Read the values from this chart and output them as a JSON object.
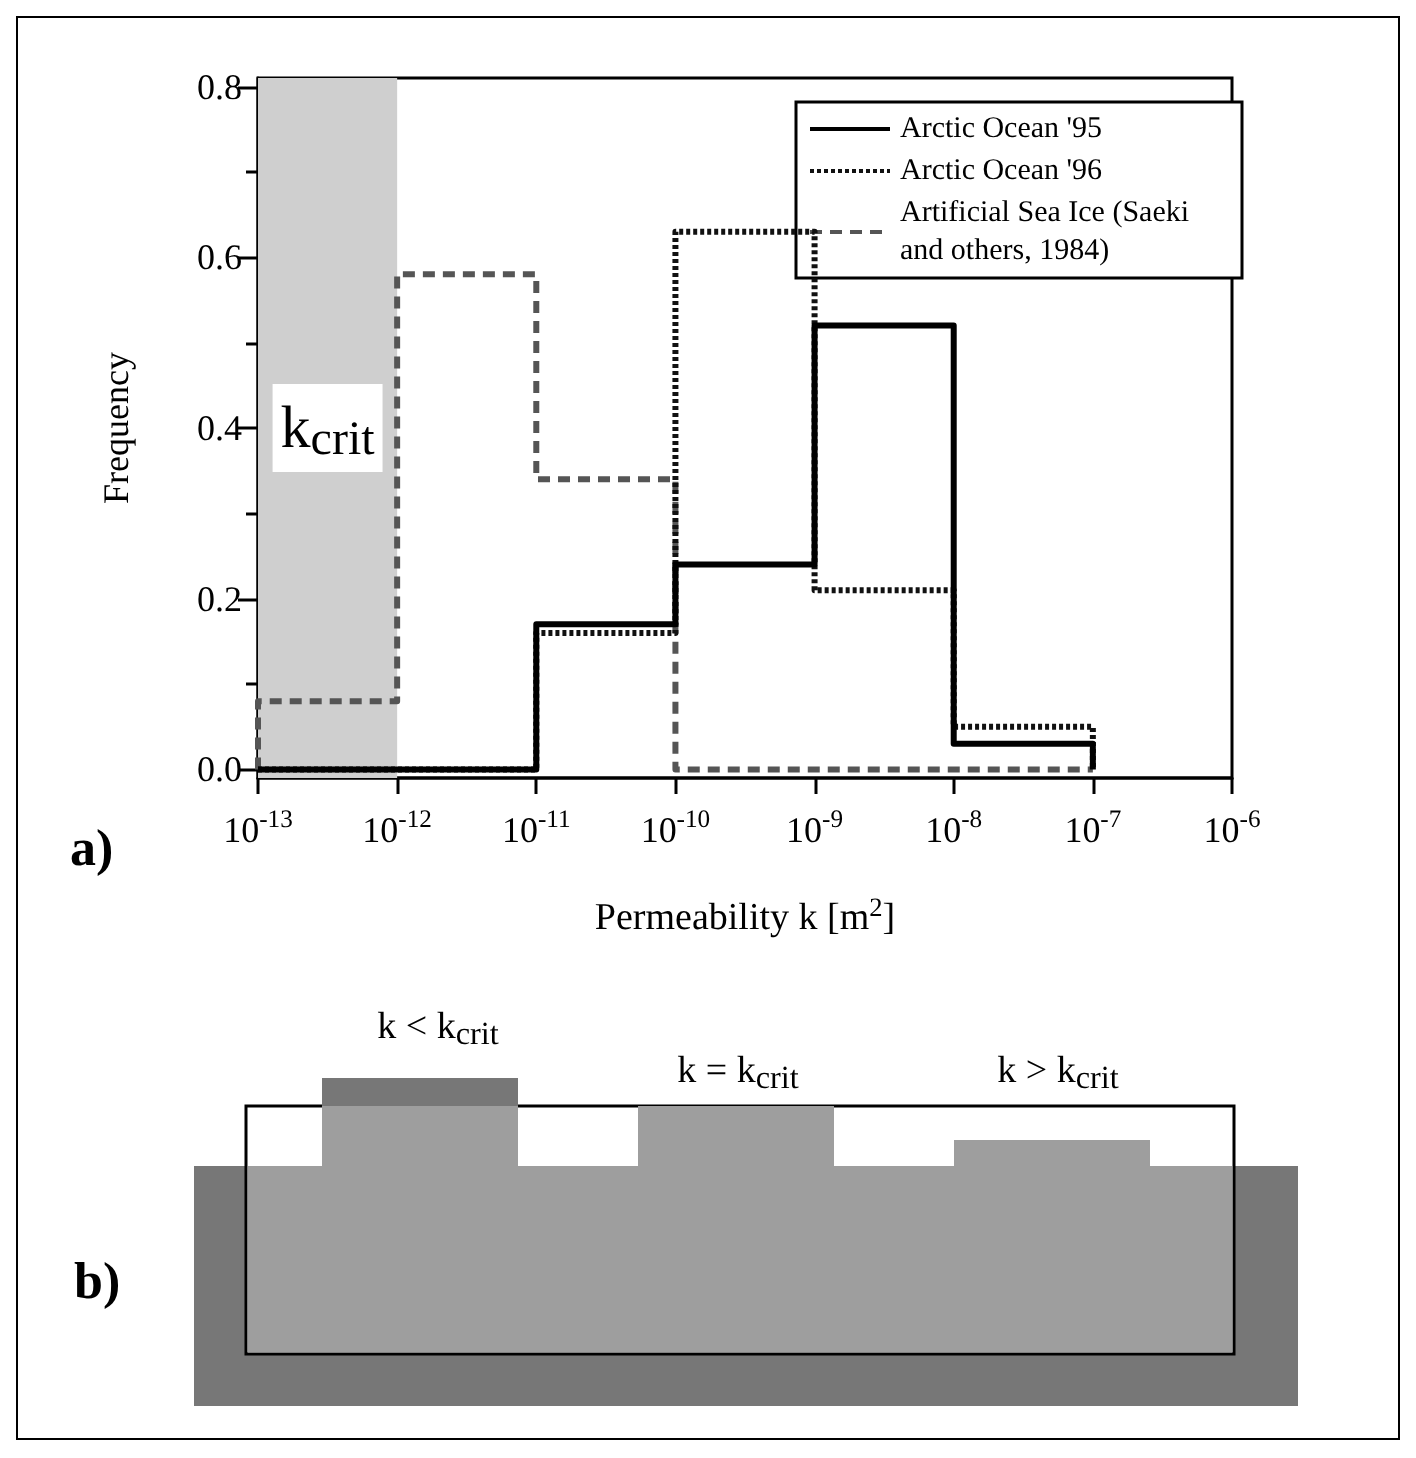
{
  "chart_data": [
    {
      "type": "histogram",
      "xlabel": "Permeability k [m$^{2}$]",
      "ylabel": "Frequency",
      "log": "x",
      "bins": [
        1e-13,
        1e-12,
        1e-11,
        1e-10,
        1e-09,
        1e-08,
        1e-07
      ],
      "series": [
        {
          "name": "Arctic Ocean '95",
          "color": "#000000",
          "line_style": "solid",
          "values": [
            0,
            0,
            0.17,
            0.24,
            0.52,
            0.03
          ]
        },
        {
          "name": "Arctic Ocean '96",
          "color": "#111111",
          "line_style": "dotted",
          "values": [
            0,
            0,
            0.16,
            0.63,
            0.21,
            0.05
          ]
        },
        {
          "name": "Artificial Sea Ice (Saeki and others, 1984)",
          "color": "#555555",
          "line_style": "dashed",
          "values": [
            0.08,
            0.58,
            0.34,
            0,
            0,
            0
          ]
        }
      ],
      "xlim": [
        1e-13,
        1e-06
      ],
      "xticks": [
        {
          "value": 1e-13,
          "label": "10$^{-13}$"
        },
        {
          "value": 1e-12,
          "label": "10$^{-12}$"
        },
        {
          "value": 1e-11,
          "label": "10$^{-11}$"
        },
        {
          "value": 1e-10,
          "label": "10$^{-10}$"
        },
        {
          "value": 1e-09,
          "label": "10$^{-9}$"
        },
        {
          "value": 1e-08,
          "label": "10$^{-8}$"
        },
        {
          "value": 1e-07,
          "label": "10$^{-7}$"
        },
        {
          "value": 1e-06,
          "label": "10$^{-6}$"
        }
      ],
      "ylim": [
        -0.01,
        0.81
      ],
      "yticks": [
        {
          "value": 0,
          "label": "0.0"
        },
        {
          "value": 0.2,
          "label": "0.2"
        },
        {
          "value": 0.4,
          "label": "0.4"
        },
        {
          "value": 0.6,
          "label": "0.6"
        },
        {
          "value": 0.8,
          "label": "0.8"
        }
      ],
      "bands": [
        {
          "axis": "x",
          "from": 1e-13,
          "to": 1e-12,
          "label": "k$_{crit}$",
          "color": "#cfcfcf"
        }
      ],
      "legend": "top right",
      "grid": false,
      "annotations": [
        "a)"
      ]
    },
    {
      "type": "other",
      "annotations": [
        "b)",
        "k < k$_{crit}$",
        "k = k$_{crit}$",
        "k > k$_{crit}$"
      ]
    }
  ]
}
